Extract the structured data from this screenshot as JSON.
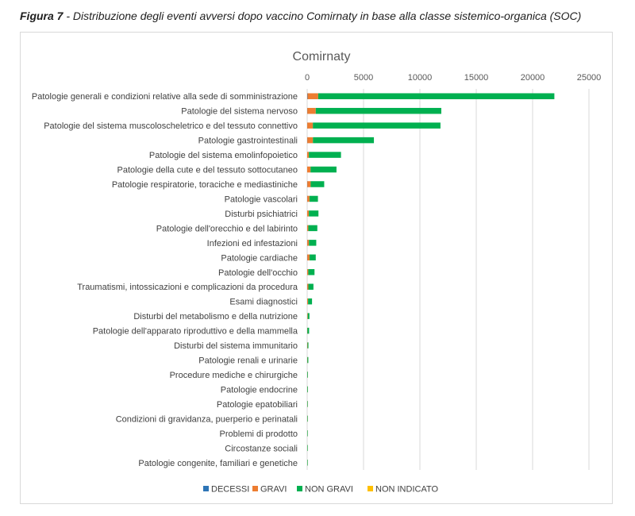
{
  "caption": {
    "label": "Figura 7",
    "text": " - Distribuzione degli eventi avversi dopo vaccino Comirnaty in base alla classe sistemico-organica (SOC)"
  },
  "chart_data": {
    "type": "bar",
    "orientation": "horizontal",
    "stacked": true,
    "title": "Comirnaty",
    "xlim": [
      0,
      25000
    ],
    "xticks": [
      0,
      5000,
      10000,
      15000,
      20000,
      25000
    ],
    "xtick_labels": [
      "0",
      "5000",
      "10000",
      "15000",
      "20000",
      "25000"
    ],
    "x_axis_position": "top",
    "grid": "vertical",
    "legend_position": "bottom",
    "categories": [
      "Patologie generali e condizioni relative alla sede di somministrazione",
      "Patologie del sistema nervoso",
      "Patologie del sistema muscoloscheletrico e del tessuto connettivo",
      "Patologie gastrointestinali",
      "Patologie del sistema emolinfopoietico",
      "Patologie della cute e del tessuto sottocutaneo",
      "Patologie respiratorie, toraciche e mediastiniche",
      "Patologie vascolari",
      "Disturbi psichiatrici",
      "Patologie dell'orecchio e del labirinto",
      "Infezioni ed infestazioni",
      "Patologie cardiache",
      "Patologie dell'occhio",
      "Traumatismi, intossicazioni e complicazioni da procedura",
      "Esami diagnostici",
      "Disturbi del metabolismo e della nutrizione",
      "Patologie dell'apparato riproduttivo e della mammella",
      "Disturbi del sistema immunitario",
      "Patologie renali e urinarie",
      "Procedure mediche e chirurgiche",
      "Patologie endocrine",
      "Patologie epatobiliari",
      "Condizioni di gravidanza, puerperio e perinatali",
      "Problemi di prodotto",
      "Circostanze sociali",
      "Patologie congenite, familiari e genetiche"
    ],
    "series": [
      {
        "name": "DECESSI",
        "color": "#2e75b6",
        "values": [
          30,
          10,
          5,
          10,
          0,
          0,
          10,
          5,
          0,
          0,
          5,
          10,
          0,
          5,
          0,
          0,
          0,
          0,
          0,
          0,
          0,
          0,
          0,
          0,
          0,
          0
        ]
      },
      {
        "name": "GRAVI",
        "color": "#ed7d31",
        "values": [
          950,
          750,
          500,
          500,
          150,
          300,
          300,
          200,
          150,
          100,
          150,
          200,
          100,
          100,
          80,
          50,
          20,
          30,
          20,
          10,
          10,
          10,
          10,
          5,
          5,
          5
        ]
      },
      {
        "name": "NON GRAVI",
        "color": "#00b050",
        "values": [
          20950,
          11140,
          11320,
          5410,
          2850,
          2300,
          1200,
          750,
          850,
          800,
          650,
          550,
          550,
          450,
          350,
          150,
          150,
          80,
          80,
          50,
          50,
          40,
          30,
          20,
          20,
          15
        ]
      },
      {
        "name": "NON INDICATO",
        "color": "#ffc000",
        "values": [
          0,
          0,
          0,
          0,
          0,
          0,
          0,
          0,
          0,
          0,
          0,
          0,
          0,
          0,
          0,
          0,
          0,
          0,
          0,
          0,
          0,
          0,
          0,
          0,
          0,
          0
        ]
      }
    ]
  }
}
